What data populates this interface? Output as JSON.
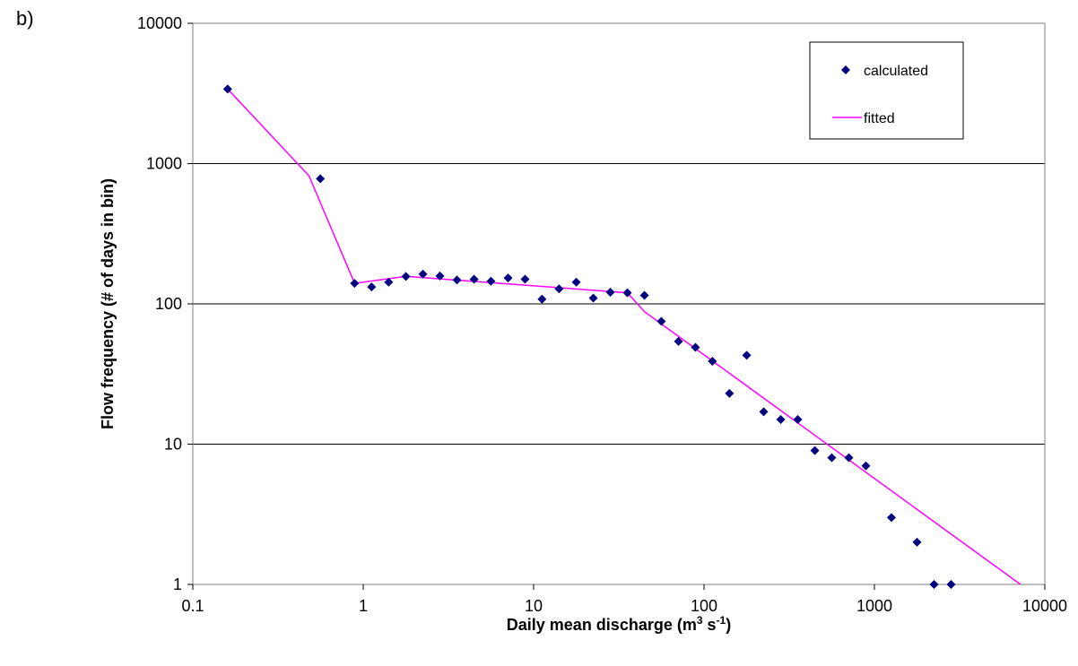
{
  "panel_label": "b)",
  "chart_data": {
    "type": "scatter",
    "title": "",
    "xlabel": "Daily mean discharge (m³ s⁻¹)",
    "xlabel_parts": {
      "prefix": "Daily mean discharge (m",
      "sup1": "3",
      "mid": " s",
      "sup2": "-1",
      "suffix": ")"
    },
    "ylabel": "Flow frequency (# of days in bin)",
    "x_scale": "log",
    "y_scale": "log",
    "xlim": [
      0.1,
      10000
    ],
    "ylim": [
      1,
      10000
    ],
    "x_ticks": [
      {
        "value": 0.1,
        "label": "0.1"
      },
      {
        "value": 1,
        "label": "1"
      },
      {
        "value": 10,
        "label": "10"
      },
      {
        "value": 100,
        "label": "100"
      },
      {
        "value": 1000,
        "label": "1000"
      },
      {
        "value": 10000,
        "label": "10000"
      }
    ],
    "y_ticks": [
      {
        "value": 1,
        "label": "1"
      },
      {
        "value": 10,
        "label": "10"
      },
      {
        "value": 100,
        "label": "100"
      },
      {
        "value": 1000,
        "label": "1000"
      },
      {
        "value": 10000,
        "label": "10000"
      }
    ],
    "grid": "horizontal major",
    "legend_position": "top-right",
    "series": [
      {
        "name": "calculated",
        "kind": "scatter",
        "marker": "diamond",
        "color": "#000080",
        "points": [
          [
            0.16,
            3400
          ],
          [
            0.56,
            780
          ],
          [
            0.89,
            140
          ],
          [
            1.12,
            132
          ],
          [
            1.41,
            143
          ],
          [
            1.78,
            157
          ],
          [
            2.24,
            163
          ],
          [
            2.82,
            158
          ],
          [
            3.55,
            148
          ],
          [
            4.47,
            150
          ],
          [
            5.62,
            145
          ],
          [
            7.08,
            153
          ],
          [
            8.91,
            150
          ],
          [
            11.2,
            108
          ],
          [
            14.1,
            128
          ],
          [
            17.8,
            143
          ],
          [
            22.4,
            110
          ],
          [
            28.2,
            121
          ],
          [
            35.5,
            120
          ],
          [
            44.7,
            115
          ],
          [
            56.2,
            75
          ],
          [
            70.8,
            54
          ],
          [
            89.1,
            49
          ],
          [
            112,
            39
          ],
          [
            141,
            23
          ],
          [
            178,
            43
          ],
          [
            224,
            17
          ],
          [
            282,
            15
          ],
          [
            355,
            15
          ],
          [
            447,
            9
          ],
          [
            562,
            8
          ],
          [
            708,
            8
          ],
          [
            891,
            7
          ],
          [
            1259,
            3
          ],
          [
            1778,
            2
          ],
          [
            2239,
            1
          ],
          [
            2818,
            1
          ]
        ]
      },
      {
        "name": "fitted",
        "kind": "line",
        "color": "#ff00ff",
        "points": [
          [
            0.16,
            3400
          ],
          [
            0.48,
            820
          ],
          [
            0.89,
            140
          ],
          [
            1.78,
            157
          ],
          [
            35.5,
            120
          ],
          [
            44.7,
            88
          ],
          [
            7200,
            1
          ]
        ]
      }
    ]
  }
}
